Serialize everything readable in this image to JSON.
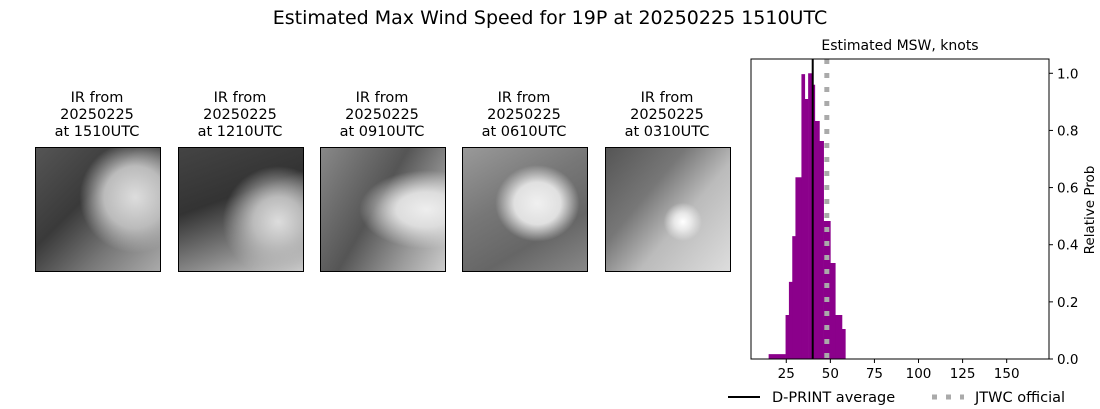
{
  "title": "Estimated Max Wind Speed for 19P at 20250225 1510UTC",
  "ir_panels": [
    {
      "line1": "IR from",
      "line2": "20250225",
      "line3": "at 1510UTC"
    },
    {
      "line1": "IR from",
      "line2": "20250225",
      "line3": "at 1210UTC"
    },
    {
      "line1": "IR from",
      "line2": "20250225",
      "line3": "at 0910UTC"
    },
    {
      "line1": "IR from",
      "line2": "20250225",
      "line3": "at 0610UTC"
    },
    {
      "line1": "IR from",
      "line2": "20250225",
      "line3": "at 0310UTC"
    }
  ],
  "chart_data": {
    "type": "bar",
    "title": "Estimated MSW, knots",
    "xlabel": "",
    "ylabel": "Relative Prob",
    "xlim": [
      5,
      174
    ],
    "ylim": [
      0,
      1.05
    ],
    "xticks": [
      25,
      50,
      75,
      100,
      125,
      150
    ],
    "yticks": [
      "0.0",
      "0.2",
      "0.4",
      "0.6",
      "0.8",
      "1.0"
    ],
    "bar_color": "#8b008b",
    "bins": [
      {
        "x0": 15.0,
        "x1": 24.6,
        "value": 0.017
      },
      {
        "x0": 24.6,
        "x1": 26.5,
        "value": 0.154
      },
      {
        "x0": 26.5,
        "x1": 28.4,
        "value": 0.27
      },
      {
        "x0": 28.4,
        "x1": 30.2,
        "value": 0.43
      },
      {
        "x0": 30.2,
        "x1": 33.6,
        "value": 0.636
      },
      {
        "x0": 33.6,
        "x1": 35.5,
        "value": 0.997
      },
      {
        "x0": 35.5,
        "x1": 37.4,
        "value": 0.91
      },
      {
        "x0": 37.4,
        "x1": 39.7,
        "value": 1.0
      },
      {
        "x0": 39.7,
        "x1": 41.2,
        "value": 0.96
      },
      {
        "x0": 41.2,
        "x1": 43.8,
        "value": 0.833
      },
      {
        "x0": 43.8,
        "x1": 46.2,
        "value": 0.763
      },
      {
        "x0": 46.2,
        "x1": 50.0,
        "value": 0.483
      },
      {
        "x0": 50.0,
        "x1": 52.8,
        "value": 0.336
      },
      {
        "x0": 52.8,
        "x1": 56.6,
        "value": 0.154
      },
      {
        "x0": 56.6,
        "x1": 58.5,
        "value": 0.105
      }
    ],
    "lines": [
      {
        "name": "D-PRINT average",
        "x": 40,
        "color": "#000000",
        "style": "solid"
      },
      {
        "name": "JTWC official",
        "x": 48,
        "color": "#aaaaaa",
        "style": "dotted"
      }
    ],
    "legend_placement": "bottom"
  }
}
